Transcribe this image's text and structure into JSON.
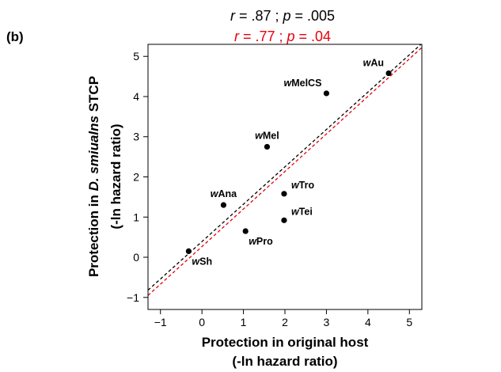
{
  "panel_label": "(b)",
  "stats": {
    "black": {
      "r_label": "r",
      "r_text": " = .87 ; ",
      "p_label": "p",
      "p_text": " = .005",
      "color": "#000000"
    },
    "red": {
      "r_label": "r",
      "r_text": " = .77 ; ",
      "p_label": "p",
      "p_text": " = .04",
      "color": "#e8000b"
    }
  },
  "chart_data": {
    "type": "scatter",
    "xlabel_line1": "Protection in original host",
    "xlabel_line2": "(-ln hazard ratio)",
    "ylabel_line1_pre": "Protection in ",
    "ylabel_line1_italic": "D. smiualns",
    "ylabel_line1_post": " STCP",
    "ylabel_line2": "(-ln hazard ratio)",
    "xlim": [
      -1.3,
      5.3
    ],
    "ylim": [
      -1.3,
      5.3
    ],
    "xticks": [
      -1,
      0,
      1,
      2,
      3,
      4,
      5
    ],
    "yticks": [
      -1,
      0,
      1,
      2,
      3,
      4,
      5
    ],
    "tick_labels": [
      "−1",
      "0",
      "1",
      "2",
      "3",
      "4",
      "5"
    ],
    "grid": false,
    "points": [
      {
        "prefix": "w",
        "name": "Au",
        "x": 4.5,
        "y": 4.58,
        "label_pos": "above-left"
      },
      {
        "prefix": "w",
        "name": "MelCS",
        "x": 3.0,
        "y": 4.08,
        "label_pos": "above-left"
      },
      {
        "prefix": "w",
        "name": "Mel",
        "x": 1.57,
        "y": 2.75,
        "label_pos": "above"
      },
      {
        "prefix": "w",
        "name": "Ana",
        "x": 0.52,
        "y": 1.3,
        "label_pos": "above"
      },
      {
        "prefix": "w",
        "name": "Tro",
        "x": 1.98,
        "y": 1.58,
        "label_pos": "above-right"
      },
      {
        "prefix": "w",
        "name": "Tei",
        "x": 1.98,
        "y": 0.92,
        "label_pos": "above-right"
      },
      {
        "prefix": "w",
        "name": "Pro",
        "x": 1.05,
        "y": 0.65,
        "label_pos": "below-right"
      },
      {
        "prefix": "w",
        "name": "Sh",
        "x": -0.32,
        "y": 0.15,
        "label_pos": "below-right"
      }
    ],
    "fit_lines": [
      {
        "color": "#000000",
        "x": [
          -1.3,
          5.3
        ],
        "y": [
          -0.82,
          5.32
        ]
      },
      {
        "color": "#e8000b",
        "x": [
          -1.3,
          5.3
        ],
        "y": [
          -0.95,
          5.22
        ]
      }
    ]
  }
}
